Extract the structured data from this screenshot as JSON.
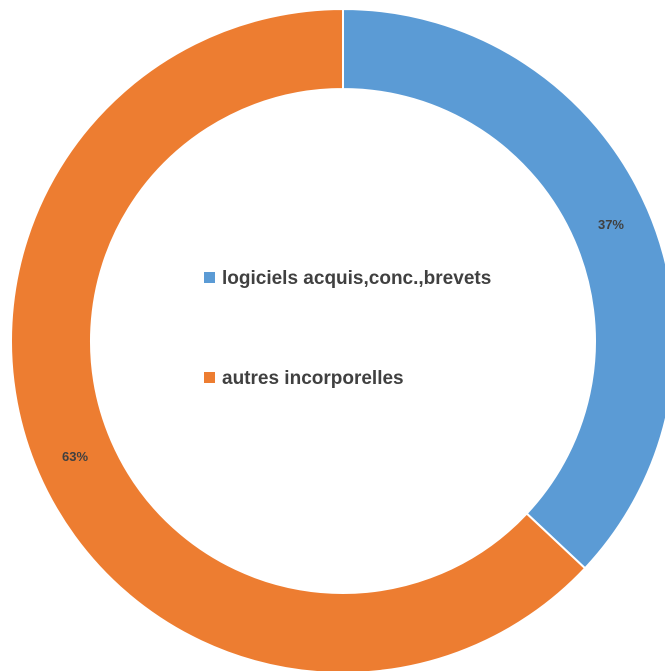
{
  "chart_data": {
    "type": "pie",
    "style": "donut",
    "categories": [
      "logiciels acquis,conc.,brevets",
      "autres incorporelles"
    ],
    "values": [
      37,
      63
    ],
    "data_labels": [
      "37%",
      "63%"
    ],
    "colors": [
      "#5B9BD5",
      "#ED7D31"
    ],
    "legend_position": "center"
  }
}
